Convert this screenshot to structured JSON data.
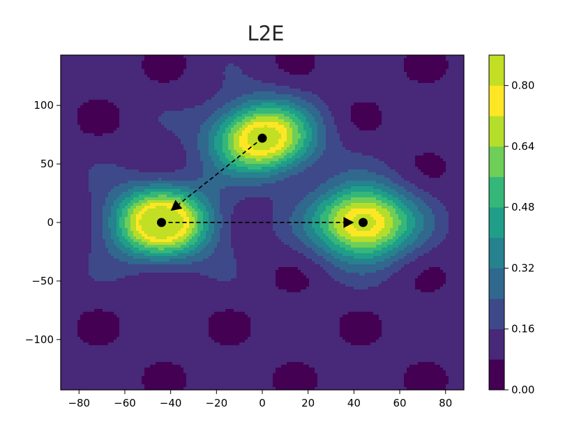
{
  "chart_data": {
    "type": "heatmap",
    "subtype": "filled-contour",
    "title": "L2E",
    "xlabel": "",
    "ylabel": "",
    "xlim": [
      -88,
      88
    ],
    "ylim": [
      -143,
      143
    ],
    "xticks": [
      -80,
      -60,
      -40,
      -20,
      0,
      20,
      40,
      60,
      80
    ],
    "xtick_labels": [
      "−80",
      "−60",
      "−40",
      "−20",
      "0",
      "20",
      "40",
      "60",
      "80"
    ],
    "yticks": [
      -100,
      -50,
      0,
      50,
      100
    ],
    "ytick_labels": [
      "−100",
      "−50",
      "0",
      "50",
      "100"
    ],
    "colorbar": {
      "range": [
        0,
        0.88
      ],
      "levels": [
        0.0,
        0.08,
        0.16,
        0.24,
        0.32,
        0.4,
        0.48,
        0.56,
        0.64,
        0.72,
        0.8,
        0.88
      ],
      "level_colors": [
        "#440154",
        "#482878",
        "#3e4989",
        "#31688e",
        "#26828e",
        "#1f9e89",
        "#35b779",
        "#6ece58",
        "#b5de2b",
        "#fde725",
        "#c2df23"
      ],
      "ticks": [
        0.0,
        0.16,
        0.32,
        0.48,
        0.64,
        0.8
      ],
      "tick_labels": [
        "0.00",
        "0.16",
        "0.32",
        "0.48",
        "0.64",
        "0.80"
      ],
      "colormap": "viridis"
    },
    "peaks": [
      {
        "x": 0,
        "y": 72,
        "amplitude": 0.78
      },
      {
        "x": -44,
        "y": 0,
        "amplitude": 0.82
      },
      {
        "x": 44,
        "y": 0,
        "amplitude": 0.78
      }
    ],
    "points": [
      {
        "x": 0,
        "y": 72
      },
      {
        "x": -44,
        "y": 0
      },
      {
        "x": 44,
        "y": 0
      }
    ],
    "arrows": [
      {
        "from": [
          0,
          72
        ],
        "to": [
          -40,
          10
        ],
        "style": "dashed"
      },
      {
        "from": [
          -44,
          0
        ],
        "to": [
          40,
          0
        ],
        "style": "dashed"
      }
    ],
    "grid": false,
    "legend": "none"
  }
}
